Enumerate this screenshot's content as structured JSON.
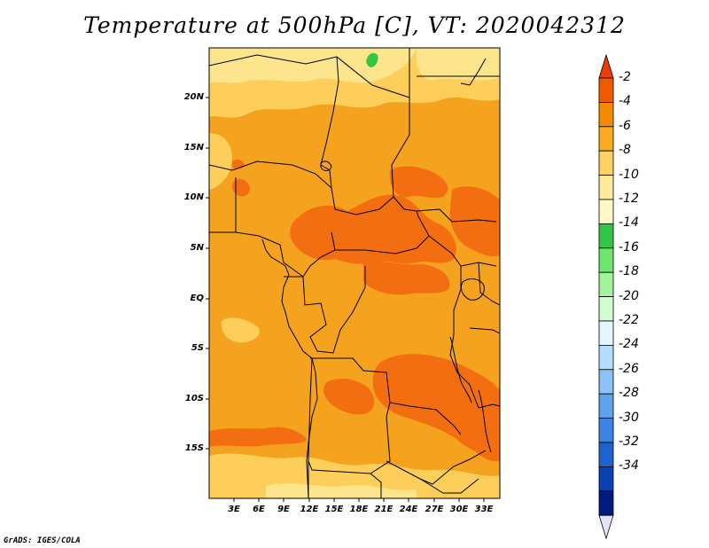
{
  "title": "Temperature at 500hPa [C], VT: 2020042312",
  "credit": "GrADS: IGES/COLA",
  "lat_labels": [
    "20N",
    "15N",
    "10N",
    "5N",
    "EQ",
    "5S",
    "10S",
    "15S"
  ],
  "lon_labels": [
    "3E",
    "6E",
    "9E",
    "12E",
    "15E",
    "18E",
    "21E",
    "24E",
    "27E",
    "30E",
    "33E"
  ],
  "colorbar": {
    "labels": [
      "-2",
      "-4",
      "-6",
      "-8",
      "-10",
      "-12",
      "-14",
      "-16",
      "-18",
      "-20",
      "-22",
      "-24",
      "-26",
      "-28",
      "-30",
      "-32",
      "-34"
    ],
    "colors": [
      "#f05a00",
      "#f58b00",
      "#faaa1e",
      "#fdd263",
      "#fdea9a",
      "#fff8c8",
      "#34c447",
      "#6ee66e",
      "#a2f39c",
      "#d2fbd0",
      "#e6f6ff",
      "#b4dcfc",
      "#8cc2f8",
      "#5ea2ee",
      "#3a82e4",
      "#1e62d0",
      "#0a40b4",
      "#001a80",
      "#e4e4f8"
    ],
    "top_color": "#f03c00",
    "bottom_color": "#e4e4f8"
  },
  "palette": {
    "base": "#f5a21e",
    "light": "#fdcf5a",
    "pale": "#fde58e",
    "warm": "#f26e10",
    "green": "#34c447"
  }
}
